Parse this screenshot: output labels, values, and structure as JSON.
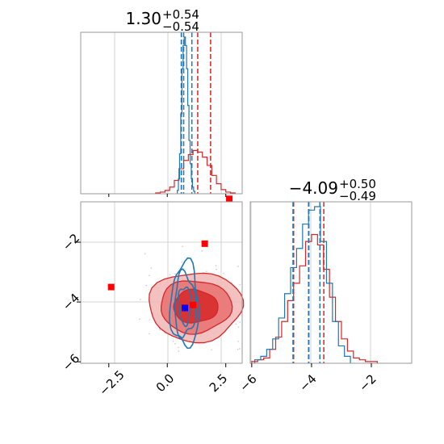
{
  "chart_data": {
    "type": "corner",
    "grid": true,
    "colors": {
      "red": "#d62728",
      "blue": "#1f77b4",
      "truth": "#0000ff",
      "reference": "#ff0000"
    },
    "params": [
      {
        "title_value": "1.30",
        "title_plus": "+0.54",
        "title_minus": "−0.54",
        "range": [
          -3.7,
          3.2
        ],
        "ticks": [
          -2.5,
          0.0,
          2.5
        ],
        "tick_labels": [
          "−2.5",
          "0.0",
          "2.5"
        ],
        "quantiles_red": [
          0.6,
          1.3,
          1.85
        ],
        "quantiles_blue": [
          0.6,
          0.7,
          1.05
        ]
      },
      {
        "title_value": "−4.09",
        "title_plus": "+0.50",
        "title_minus": "−0.49",
        "range": [
          -6.05,
          -0.65
        ],
        "ticks": [
          -6,
          -4,
          -2
        ],
        "tick_labels": [
          "−6",
          "−4",
          "−2"
        ],
        "quantiles_red": [
          -4.6,
          -4.09,
          -3.59
        ],
        "quantiles_blue": [
          -4.62,
          -4.1,
          -3.72
        ]
      }
    ],
    "hist_red": {
      "x_centers": [
        -0.4,
        -0.2,
        0.0,
        0.2,
        0.4,
        0.6,
        0.8,
        1.0,
        1.2,
        1.4,
        1.6,
        1.8,
        2.0,
        2.2,
        2.4,
        2.6,
        2.8
      ],
      "counts": [
        1,
        2,
        4,
        8,
        16,
        30,
        40,
        47,
        52,
        50,
        44,
        34,
        22,
        12,
        5,
        2,
        1
      ]
    },
    "hist_blue_x": {
      "x_centers": [
        0.45,
        0.5,
        0.55,
        0.6,
        0.65,
        0.7,
        0.75,
        0.8,
        0.85,
        0.9,
        0.95,
        1.0,
        1.05,
        1.1,
        1.15
      ],
      "counts": [
        4,
        18,
        48,
        96,
        150,
        178,
        188,
        178,
        150,
        106,
        64,
        36,
        18,
        8,
        3
      ]
    },
    "hist_red_y": {
      "x_centers": [
        -5.9,
        -5.7,
        -5.5,
        -5.3,
        -5.1,
        -4.9,
        -4.7,
        -4.5,
        -4.3,
        -4.1,
        -3.9,
        -3.7,
        -3.5,
        -3.3,
        -3.1,
        -2.9,
        -2.7,
        -2.5,
        -2.3,
        -2.1,
        -1.9
      ],
      "counts": [
        1,
        2,
        3,
        8,
        15,
        24,
        36,
        46,
        56,
        70,
        74,
        68,
        54,
        38,
        24,
        14,
        7,
        3,
        2,
        1,
        1
      ]
    },
    "hist_blue_y": {
      "x_centers": [
        -5.8,
        -5.6,
        -5.4,
        -5.2,
        -5.0,
        -4.8,
        -4.6,
        -4.4,
        -4.2,
        -4.0,
        -3.8,
        -3.6,
        -3.4,
        -3.2,
        -3.0,
        -2.8
      ],
      "counts": [
        2,
        4,
        8,
        14,
        26,
        40,
        55,
        66,
        80,
        88,
        90,
        70,
        46,
        24,
        10,
        4
      ]
    },
    "kde_red": {
      "center": [
        1.2,
        -4.15
      ],
      "sigma": [
        0.95,
        0.55
      ],
      "levels": [
        1.0,
        1.6,
        2.1
      ]
    },
    "kde_blue": {
      "center": [
        0.75,
        -4.1
      ],
      "sigma": [
        0.3,
        0.7
      ],
      "levels": [
        0.9,
        1.5,
        2.0
      ]
    },
    "truth_point": [
      0.75,
      -4.2
    ],
    "reference_points": [
      [
        -2.4,
        -3.5
      ],
      [
        1.6,
        -2.05
      ],
      [
        2.65,
        -0.55
      ],
      [
        1.1,
        -4.1
      ]
    ]
  }
}
